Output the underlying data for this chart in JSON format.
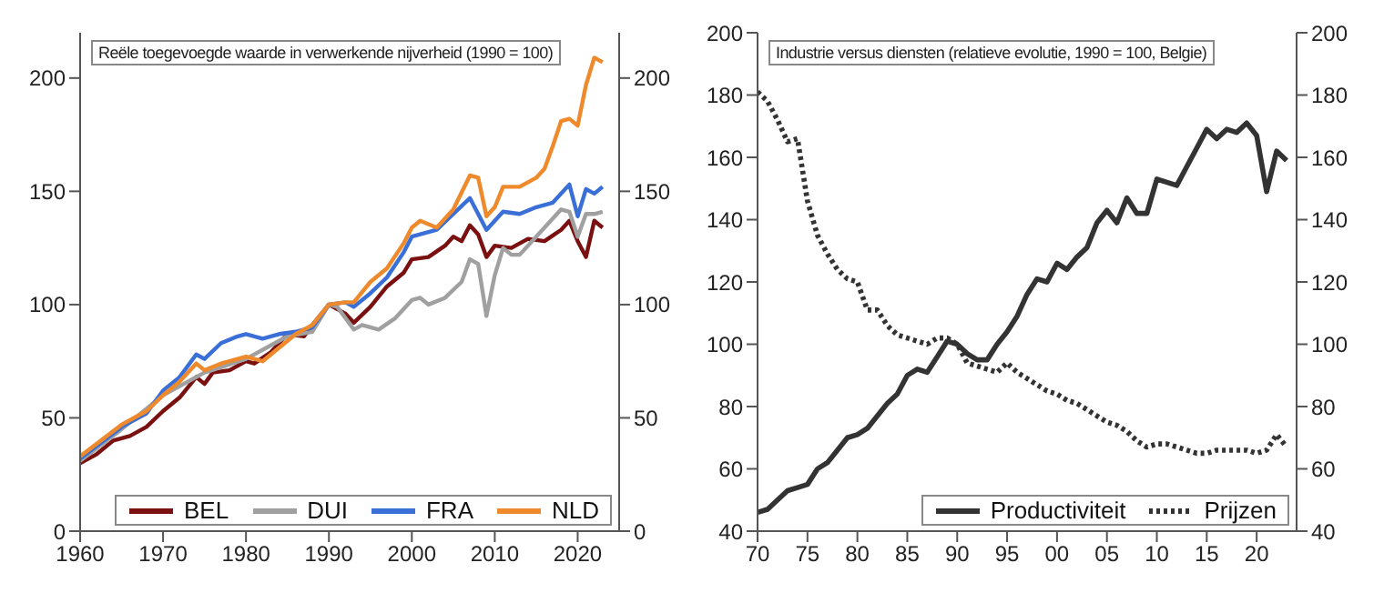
{
  "chart_data": [
    {
      "type": "line",
      "title": "Reële toegevoegde waarde in verwerkende nijverheid (1990 = 100)",
      "xlim": [
        1960,
        2025
      ],
      "xticks": [
        1960,
        1970,
        1980,
        1990,
        2000,
        2010,
        2020
      ],
      "ylim": [
        0,
        220
      ],
      "yticks": [
        0,
        50,
        100,
        150,
        200
      ],
      "y2lim": [
        0,
        220
      ],
      "y2ticks": [
        0,
        50,
        100,
        150,
        200
      ],
      "legend": "bottom right",
      "marker": "none",
      "series": [
        {
          "name": "BEL",
          "color": "#7b1010",
          "x": [
            1960,
            1962,
            1964,
            1966,
            1968,
            1970,
            1972,
            1974,
            1975,
            1976,
            1978,
            1980,
            1981,
            1983,
            1985,
            1987,
            1988,
            1990,
            1992,
            1993,
            1995,
            1997,
            1999,
            2000,
            2002,
            2004,
            2005,
            2006,
            2007,
            2008,
            2009,
            2010,
            2012,
            2014,
            2016,
            2018,
            2019,
            2020,
            2021,
            2022,
            2023
          ],
          "values": [
            30,
            34,
            40,
            42,
            46,
            53,
            59,
            68,
            65,
            70,
            71,
            75,
            74,
            79,
            87,
            86,
            91,
            100,
            96,
            92,
            99,
            108,
            114,
            120,
            121,
            126,
            130,
            128,
            135,
            131,
            121,
            126,
            125,
            129,
            128,
            133,
            137,
            128,
            121,
            137,
            134
          ]
        },
        {
          "name": "DUI",
          "color": "#a0a0a0",
          "x": [
            1960,
            1965,
            1970,
            1975,
            1980,
            1985,
            1988,
            1990,
            1991,
            1993,
            1994,
            1996,
            1998,
            2000,
            2001,
            2002,
            2004,
            2006,
            2007,
            2008,
            2009,
            2010,
            2011,
            2012,
            2013,
            2015,
            2017,
            2018,
            2019,
            2020,
            2021,
            2022,
            2023
          ],
          "values": [
            31,
            45,
            60,
            70,
            76,
            86,
            88,
            100,
            99,
            89,
            91,
            89,
            94,
            102,
            103,
            100,
            103,
            110,
            120,
            118,
            95,
            113,
            125,
            122,
            122,
            130,
            138,
            142,
            141,
            130,
            140,
            140,
            141
          ]
        },
        {
          "name": "FRA",
          "color": "#3a6fd8",
          "x": [
            1960,
            1965,
            1968,
            1970,
            1972,
            1974,
            1975,
            1977,
            1979,
            1980,
            1982,
            1984,
            1986,
            1988,
            1990,
            1992,
            1993,
            1995,
            1997,
            1999,
            2000,
            2001,
            2003,
            2005,
            2007,
            2009,
            2011,
            2013,
            2015,
            2017,
            2019,
            2020,
            2021,
            2022,
            2023
          ],
          "values": [
            32,
            46,
            52,
            62,
            68,
            78,
            76,
            83,
            86,
            87,
            85,
            87,
            88,
            90,
            100,
            101,
            99,
            105,
            112,
            123,
            130,
            131,
            133,
            140,
            147,
            133,
            141,
            140,
            143,
            145,
            153,
            139,
            151,
            149,
            152
          ]
        },
        {
          "name": "NLD",
          "color": "#ee8a2c",
          "x": [
            1960,
            1965,
            1968,
            1970,
            1972,
            1974,
            1975,
            1977,
            1980,
            1982,
            1984,
            1986,
            1988,
            1990,
            1992,
            1993,
            1995,
            1997,
            1999,
            2000,
            2001,
            2003,
            2005,
            2007,
            2008,
            2009,
            2010,
            2011,
            2013,
            2015,
            2016,
            2017,
            2018,
            2019,
            2020,
            2021,
            2022,
            2023
          ],
          "values": [
            33,
            47,
            53,
            60,
            66,
            74,
            71,
            74,
            77,
            75,
            81,
            87,
            91,
            100,
            101,
            101,
            110,
            116,
            127,
            134,
            137,
            134,
            142,
            157,
            156,
            139,
            143,
            152,
            152,
            156,
            160,
            170,
            181,
            182,
            179,
            197,
            209,
            207
          ]
        }
      ]
    },
    {
      "type": "line",
      "title": "Industrie versus diensten (relatieve evolutie, 1990 = 100, Belgie)",
      "xlim": [
        1970,
        2024
      ],
      "xticks": [
        {
          "value": 1970,
          "label": "70"
        },
        {
          "value": 1975,
          "label": "75"
        },
        {
          "value": 1980,
          "label": "80"
        },
        {
          "value": 1985,
          "label": "85"
        },
        {
          "value": 1990,
          "label": "90"
        },
        {
          "value": 1995,
          "label": "95"
        },
        {
          "value": 2000,
          "label": "00"
        },
        {
          "value": 2005,
          "label": "05"
        },
        {
          "value": 2010,
          "label": "10"
        },
        {
          "value": 2015,
          "label": "15"
        },
        {
          "value": 2020,
          "label": "20"
        }
      ],
      "ylim": [
        40,
        200
      ],
      "yticks": [
        40,
        60,
        80,
        100,
        120,
        140,
        160,
        180,
        200
      ],
      "y2lim": [
        40,
        200
      ],
      "y2ticks": [
        40,
        60,
        80,
        100,
        120,
        140,
        160,
        180,
        200
      ],
      "legend": "bottom right",
      "marker": "none",
      "x": [
        1970,
        1971,
        1972,
        1973,
        1974,
        1975,
        1976,
        1977,
        1978,
        1979,
        1980,
        1981,
        1982,
        1983,
        1984,
        1985,
        1986,
        1987,
        1988,
        1989,
        1990,
        1991,
        1992,
        1993,
        1994,
        1995,
        1996,
        1997,
        1998,
        1999,
        2000,
        2001,
        2002,
        2003,
        2004,
        2005,
        2006,
        2007,
        2008,
        2009,
        2010,
        2011,
        2012,
        2013,
        2014,
        2015,
        2016,
        2017,
        2018,
        2019,
        2020,
        2021,
        2022,
        2023
      ],
      "series": [
        {
          "name": "Productiviteit",
          "color": "#333333",
          "line_style": "solid",
          "values": [
            46,
            47,
            50,
            53,
            54,
            55,
            60,
            62,
            66,
            70,
            71,
            73,
            77,
            81,
            84,
            90,
            92,
            91,
            96,
            101,
            100,
            97,
            95,
            95,
            100,
            104,
            109,
            116,
            121,
            120,
            126,
            124,
            128,
            131,
            139,
            143,
            139,
            147,
            142,
            142,
            153,
            152,
            151,
            157,
            163,
            169,
            166,
            169,
            168,
            171,
            167,
            149,
            162,
            159
          ]
        },
        {
          "name": "Prijzen",
          "color": "#333333",
          "line_style": "dotted",
          "values": [
            181,
            178,
            172,
            165,
            166,
            146,
            135,
            129,
            124,
            121,
            120,
            111,
            111,
            106,
            103,
            102,
            101,
            100,
            102,
            102,
            100,
            94,
            93,
            92,
            91,
            94,
            91,
            89,
            87,
            85,
            84,
            82,
            81,
            79,
            77,
            75,
            74,
            72,
            69,
            67,
            68,
            68,
            67,
            66,
            65,
            65,
            66,
            66,
            66,
            66,
            65,
            66,
            71,
            67
          ]
        }
      ]
    }
  ]
}
